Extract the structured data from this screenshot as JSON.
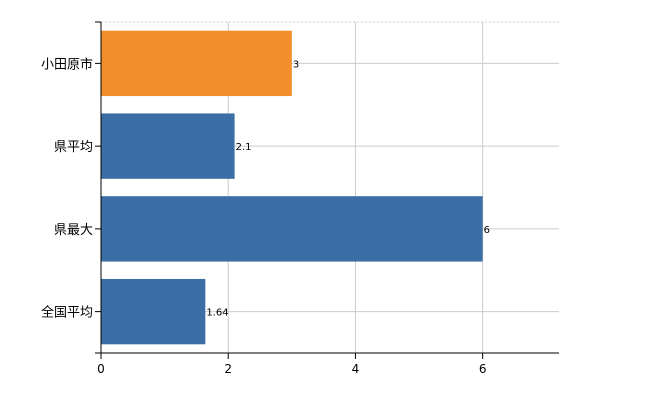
{
  "chart_data": {
    "type": "bar",
    "orientation": "horizontal",
    "categories": [
      "小田原市",
      "県平均",
      "県最大",
      "全国平均"
    ],
    "values": [
      3,
      2.1,
      6,
      1.64
    ],
    "value_labels": [
      "3",
      "2.1",
      "6",
      "1.64"
    ],
    "bar_colors": [
      "#f28e2b",
      "#3a6ea5",
      "#3a6ea5",
      "#3a6ea5"
    ],
    "highlight_color": "#f28e2b",
    "base_color": "#3a6ea5",
    "xlim": [
      0,
      7.2
    ],
    "x_ticks": [
      0,
      2,
      4,
      6
    ],
    "title": "",
    "xlabel": "",
    "ylabel": "",
    "grid": true
  }
}
